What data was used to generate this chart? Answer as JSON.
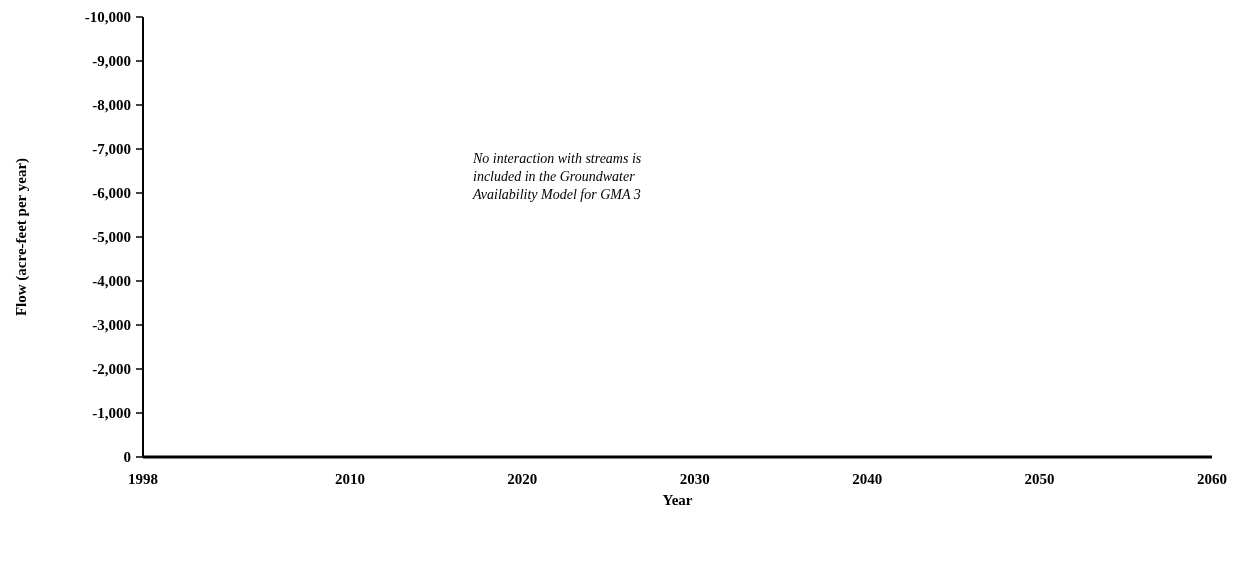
{
  "chart_data": {
    "type": "line",
    "xlabel": "Year",
    "ylabel": "Flow (acre-feet per year)",
    "x": [
      1998,
      2060
    ],
    "series": [
      {
        "color": "#000000",
        "values": [
          0,
          0
        ]
      }
    ],
    "xlim": [
      1998,
      2060
    ],
    "xticks": [
      1998,
      2010,
      2020,
      2030,
      2040,
      2050,
      2060
    ],
    "ylim": [
      0,
      -10000
    ],
    "yticks": [
      {
        "value": 0,
        "label": "0"
      },
      {
        "value": -1000,
        "label": "-1,000"
      },
      {
        "value": -2000,
        "label": "-2,000"
      },
      {
        "value": -3000,
        "label": "-3,000"
      },
      {
        "value": -4000,
        "label": "-4,000"
      },
      {
        "value": -5000,
        "label": "-5,000"
      },
      {
        "value": -6000,
        "label": "-6,000"
      },
      {
        "value": -7000,
        "label": "-7,000"
      },
      {
        "value": -8000,
        "label": "-8,000"
      },
      {
        "value": -9000,
        "label": "-9,000"
      },
      {
        "value": -10000,
        "label": "-10,000"
      }
    ],
    "annotations": [
      "No interaction with streams is included in the Groundwater Availability Model for GMA 3"
    ],
    "grid": false,
    "marker": "none",
    "line_style": "solid"
  }
}
